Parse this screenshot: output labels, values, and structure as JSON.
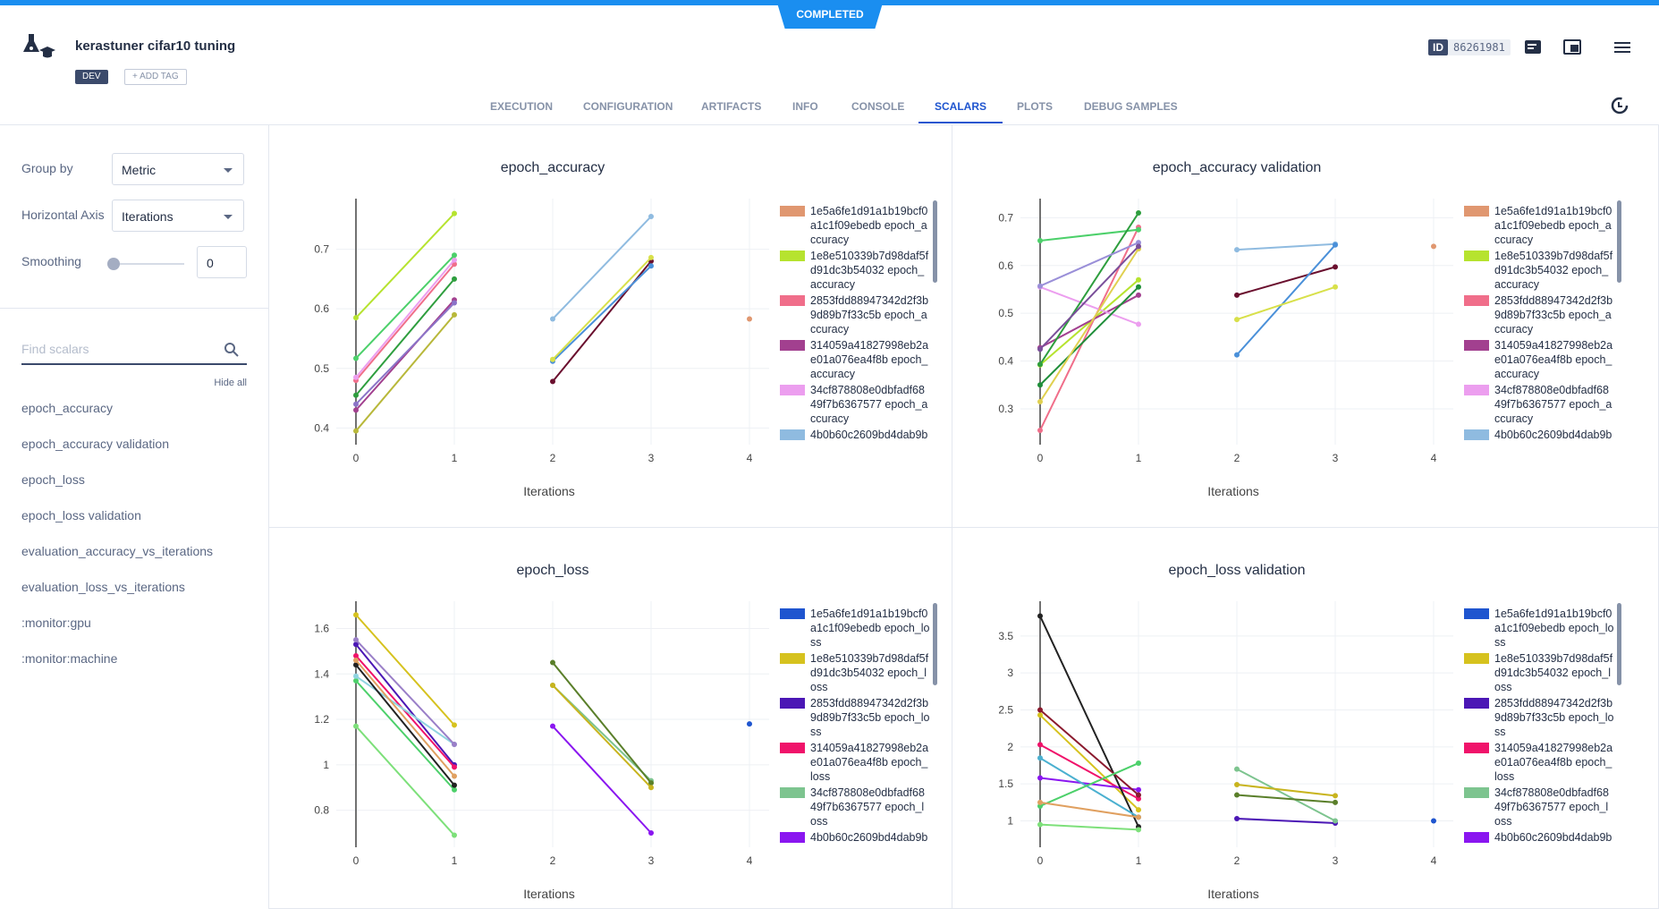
{
  "header": {
    "status": "COMPLETED",
    "title": "kerastuner cifar10 tuning",
    "tag": "DEV",
    "add_tag": "+ ADD TAG",
    "id_label": "ID",
    "id": "86261981"
  },
  "tabs": [
    "EXECUTION",
    "CONFIGURATION",
    "ARTIFACTS",
    "INFO",
    "CONSOLE",
    "SCALARS",
    "PLOTS",
    "DEBUG SAMPLES"
  ],
  "active_tab": 5,
  "sidebar": {
    "group_by_label": "Group by",
    "group_by": "Metric",
    "horizontal_axis_label": "Horizontal Axis",
    "horizontal_axis": "Iterations",
    "smoothing_label": "Smoothing",
    "smoothing": "0",
    "search_placeholder": "Find scalars",
    "hide_all": "Hide all",
    "metrics": [
      "epoch_accuracy",
      "epoch_accuracy validation",
      "epoch_loss",
      "epoch_loss validation",
      "evaluation_accuracy_vs_iterations",
      "evaluation_loss_vs_iterations",
      ":monitor:gpu",
      ":monitor:machine"
    ]
  },
  "chart_data": [
    {
      "type": "line",
      "title": "epoch_accuracy",
      "x_label": "Iterations",
      "x": [
        0,
        1,
        2,
        3,
        4
      ],
      "xlim": [
        -0.2,
        4.2
      ],
      "xticks": [
        0,
        1,
        2,
        3,
        4
      ],
      "ylim": [
        0.372,
        0.785
      ],
      "yticks": [
        0.4,
        0.5,
        0.6,
        0.7
      ],
      "grid": true,
      "series": [
        {
          "name": "1e5a6fe1d91a1b19bcf0a1c1f09ebedb epoch_accuracy",
          "color": "#e09770",
          "values": [
            null,
            null,
            null,
            null,
            0.583
          ]
        },
        {
          "name": "1e8e510339b7d98daf5fd91dc3b54032 epoch_accuracy",
          "color": "#b6e32f",
          "values": [
            0.585,
            0.76,
            null,
            null,
            null
          ]
        },
        {
          "name": "2853fdd88947342d2f3b9d89b7f33c5b epoch_accuracy",
          "color": "#f06e8a",
          "values": [
            0.48,
            0.675,
            null,
            null,
            null
          ]
        },
        {
          "name": "314059a41827998eb2ae01a076ea4f8b epoch_accuracy",
          "color": "#a2408f",
          "values": [
            0.43,
            0.615,
            null,
            null,
            null
          ]
        },
        {
          "name": "34cf878808e0dbfadf6849f7b6367577 epoch_accuracy",
          "color": "#ec9eef",
          "values": [
            0.485,
            0.682,
            null,
            null,
            null
          ]
        },
        {
          "name": "4b0b60c2609bd4dab9b",
          "color": "#8fbbe0",
          "values": [
            null,
            null,
            0.583,
            0.755,
            null
          ]
        },
        {
          "color": "#4cd06a",
          "values": [
            0.517,
            0.69,
            null,
            null,
            null
          ]
        },
        {
          "color": "#b8b83a",
          "values": [
            0.395,
            0.59,
            null,
            null,
            null
          ]
        },
        {
          "color": "#2e9e3e",
          "values": [
            0.455,
            0.65,
            null,
            null,
            null
          ]
        },
        {
          "color": "#6a0f2e",
          "values": [
            null,
            null,
            0.478,
            0.68,
            null
          ]
        },
        {
          "color": "#8b74c8",
          "values": [
            0.44,
            0.61,
            null,
            null,
            null
          ]
        },
        {
          "color": "#4a90d9",
          "values": [
            null,
            null,
            0.512,
            0.672,
            null
          ]
        },
        {
          "color": "#d8e04a",
          "values": [
            null,
            null,
            0.515,
            0.686,
            null
          ]
        }
      ]
    },
    {
      "type": "line",
      "title": "epoch_accuracy validation",
      "x_label": "Iterations",
      "x": [
        0,
        1,
        2,
        3,
        4
      ],
      "xlim": [
        -0.2,
        4.2
      ],
      "xticks": [
        0,
        1,
        2,
        3,
        4
      ],
      "ylim": [
        0.225,
        0.74
      ],
      "yticks": [
        0.3,
        0.4,
        0.5,
        0.6,
        0.7
      ],
      "grid": true,
      "series": [
        {
          "name": "1e5a6fe1d91a1b19bcf0a1c1f09ebedb epoch_accuracy",
          "color": "#e09770",
          "values": [
            null,
            null,
            null,
            null,
            0.64
          ]
        },
        {
          "name": "1e8e510339b7d98daf5fd91dc3b54032 epoch_accuracy",
          "color": "#b6e32f",
          "values": [
            0.392,
            0.57,
            null,
            null,
            null
          ]
        },
        {
          "name": "2853fdd88947342d2f3b9d89b7f33c5b epoch_accuracy",
          "color": "#f06e8a",
          "values": [
            0.255,
            0.68,
            null,
            null,
            null
          ]
        },
        {
          "name": "314059a41827998eb2ae01a076ea4f8b epoch_accuracy",
          "color": "#a2408f",
          "values": [
            0.428,
            0.538,
            null,
            null,
            null
          ]
        },
        {
          "name": "34cf878808e0dbfadf6849f7b6367577 epoch_accuracy",
          "color": "#ec9eef",
          "values": [
            0.555,
            0.477,
            null,
            null,
            null
          ]
        },
        {
          "name": "4b0b60c2609bd4dab9b",
          "color": "#8fbbe0",
          "values": [
            null,
            null,
            0.633,
            0.645,
            null
          ]
        },
        {
          "color": "#4cd06a",
          "values": [
            0.652,
            0.675,
            null,
            null,
            null
          ]
        },
        {
          "color": "#2e9e3e",
          "values": [
            0.393,
            0.71,
            null,
            null,
            null
          ]
        },
        {
          "color": "#6a0f2e",
          "values": [
            null,
            null,
            0.538,
            0.597,
            null
          ]
        },
        {
          "color": "#4a90d9",
          "values": [
            null,
            null,
            0.413,
            0.643,
            null
          ]
        },
        {
          "color": "#1f8e3a",
          "values": [
            0.35,
            0.555,
            null,
            null,
            null
          ]
        },
        {
          "color": "#e0d050",
          "values": [
            0.315,
            0.635,
            null,
            null,
            null
          ]
        },
        {
          "color": "#d8e04a",
          "values": [
            null,
            null,
            0.487,
            0.555,
            null
          ]
        },
        {
          "color": "#9a8fd8",
          "values": [
            0.557,
            0.648,
            null,
            null,
            null
          ]
        },
        {
          "color": "#7a4f9a",
          "values": [
            0.425,
            0.64,
            null,
            null,
            null
          ]
        }
      ]
    },
    {
      "type": "line",
      "title": "epoch_loss",
      "x_label": "Iterations",
      "x": [
        0,
        1,
        2,
        3,
        4
      ],
      "xlim": [
        -0.2,
        4.2
      ],
      "xticks": [
        0,
        1,
        2,
        3,
        4
      ],
      "ylim": [
        0.637,
        1.72
      ],
      "yticks": [
        0.8,
        1,
        1.2,
        1.4,
        1.6
      ],
      "grid": true,
      "series": [
        {
          "name": "1e5a6fe1d91a1b19bcf0a1c1f09ebedb epoch_loss",
          "color": "#1f55cf",
          "values": [
            null,
            null,
            null,
            null,
            1.18
          ]
        },
        {
          "name": "1e8e510339b7d98daf5fd91dc3b54032 epoch_loss",
          "color": "#d6c21e",
          "values": [
            1.66,
            1.175,
            null,
            null,
            null
          ]
        },
        {
          "name": "2853fdd88947342d2f3b9d89b7f33c5b epoch_loss",
          "color": "#4b17b5",
          "values": [
            1.53,
            1.0,
            null,
            null,
            null
          ]
        },
        {
          "name": "314059a41827998eb2ae01a076ea4f8b epoch_loss",
          "color": "#f0126a",
          "values": [
            1.48,
            0.99,
            null,
            null,
            null
          ]
        },
        {
          "name": "34cf878808e0dbfadf6849f7b6367577 epoch_loss",
          "color": "#7dc48f",
          "values": [
            null,
            null,
            1.35,
            0.93,
            null
          ]
        },
        {
          "name": "4b0b60c2609bd4dab9b",
          "color": "#8a16f0",
          "values": [
            null,
            null,
            1.17,
            0.7,
            null
          ]
        },
        {
          "color": "#7de07a",
          "values": [
            1.17,
            0.69,
            null,
            null,
            null
          ]
        },
        {
          "color": "#4cd06a",
          "values": [
            1.37,
            0.89,
            null,
            null,
            null
          ]
        },
        {
          "color": "#5a7f2a",
          "values": [
            null,
            null,
            1.45,
            0.92,
            null
          ]
        },
        {
          "color": "#8fd3e0",
          "values": [
            1.39,
            1.09,
            null,
            null,
            null
          ]
        },
        {
          "color": "#9a7fc8",
          "values": [
            1.55,
            1.09,
            null,
            null,
            null
          ]
        },
        {
          "color": "#222222",
          "values": [
            1.44,
            0.91,
            null,
            null,
            null
          ]
        },
        {
          "color": "#e0a060",
          "values": [
            1.46,
            0.95,
            null,
            null,
            null
          ]
        },
        {
          "color": "#c8b41e",
          "values": [
            null,
            null,
            1.35,
            0.9,
            null
          ]
        }
      ]
    },
    {
      "type": "line",
      "title": "epoch_loss validation",
      "x_label": "Iterations",
      "x": [
        0,
        1,
        2,
        3,
        4
      ],
      "xlim": [
        -0.2,
        4.2
      ],
      "xticks": [
        0,
        1,
        2,
        3,
        4
      ],
      "ylim": [
        0.643,
        3.97
      ],
      "yticks": [
        1,
        1.5,
        2,
        2.5,
        3,
        3.5
      ],
      "grid": true,
      "series": [
        {
          "name": "1e5a6fe1d91a1b19bcf0a1c1f09ebedb epoch_loss",
          "color": "#1f55cf",
          "values": [
            null,
            null,
            null,
            null,
            1.0
          ]
        },
        {
          "name": "1e8e510339b7d98daf5fd91dc3b54032 epoch_loss",
          "color": "#d6c21e",
          "values": [
            2.43,
            1.15,
            null,
            null,
            null
          ]
        },
        {
          "name": "2853fdd88947342d2f3b9d89b7f33c5b epoch_loss",
          "color": "#4b17b5",
          "values": [
            null,
            null,
            1.03,
            0.97,
            null
          ]
        },
        {
          "name": "314059a41827998eb2ae01a076ea4f8b epoch_loss",
          "color": "#f0126a",
          "values": [
            2.03,
            1.3,
            null,
            null,
            null
          ]
        },
        {
          "name": "34cf878808e0dbfadf6849f7b6367577 epoch_loss",
          "color": "#7dc48f",
          "values": [
            null,
            null,
            1.7,
            1.0,
            null
          ]
        },
        {
          "name": "4b0b60c2609bd4dab9b",
          "color": "#8a16f0",
          "values": [
            1.58,
            1.42,
            null,
            null,
            null
          ]
        },
        {
          "color": "#222222",
          "values": [
            3.77,
            0.92,
            null,
            null,
            null
          ]
        },
        {
          "color": "#8b1a2e",
          "values": [
            2.5,
            1.35,
            null,
            null,
            null
          ]
        },
        {
          "color": "#5a7f2a",
          "values": [
            null,
            null,
            1.35,
            1.25,
            null
          ]
        },
        {
          "color": "#7de07a",
          "values": [
            0.95,
            0.88,
            null,
            null,
            null
          ]
        },
        {
          "color": "#4ab0d0",
          "values": [
            1.85,
            1.05,
            null,
            null,
            null
          ]
        },
        {
          "color": "#4cd06a",
          "values": [
            1.2,
            1.78,
            null,
            null,
            null
          ]
        },
        {
          "color": "#e0a060",
          "values": [
            1.25,
            1.05,
            null,
            null,
            null
          ]
        },
        {
          "color": "#c8b41e",
          "values": [
            null,
            null,
            1.49,
            1.34,
            null
          ]
        }
      ]
    }
  ]
}
